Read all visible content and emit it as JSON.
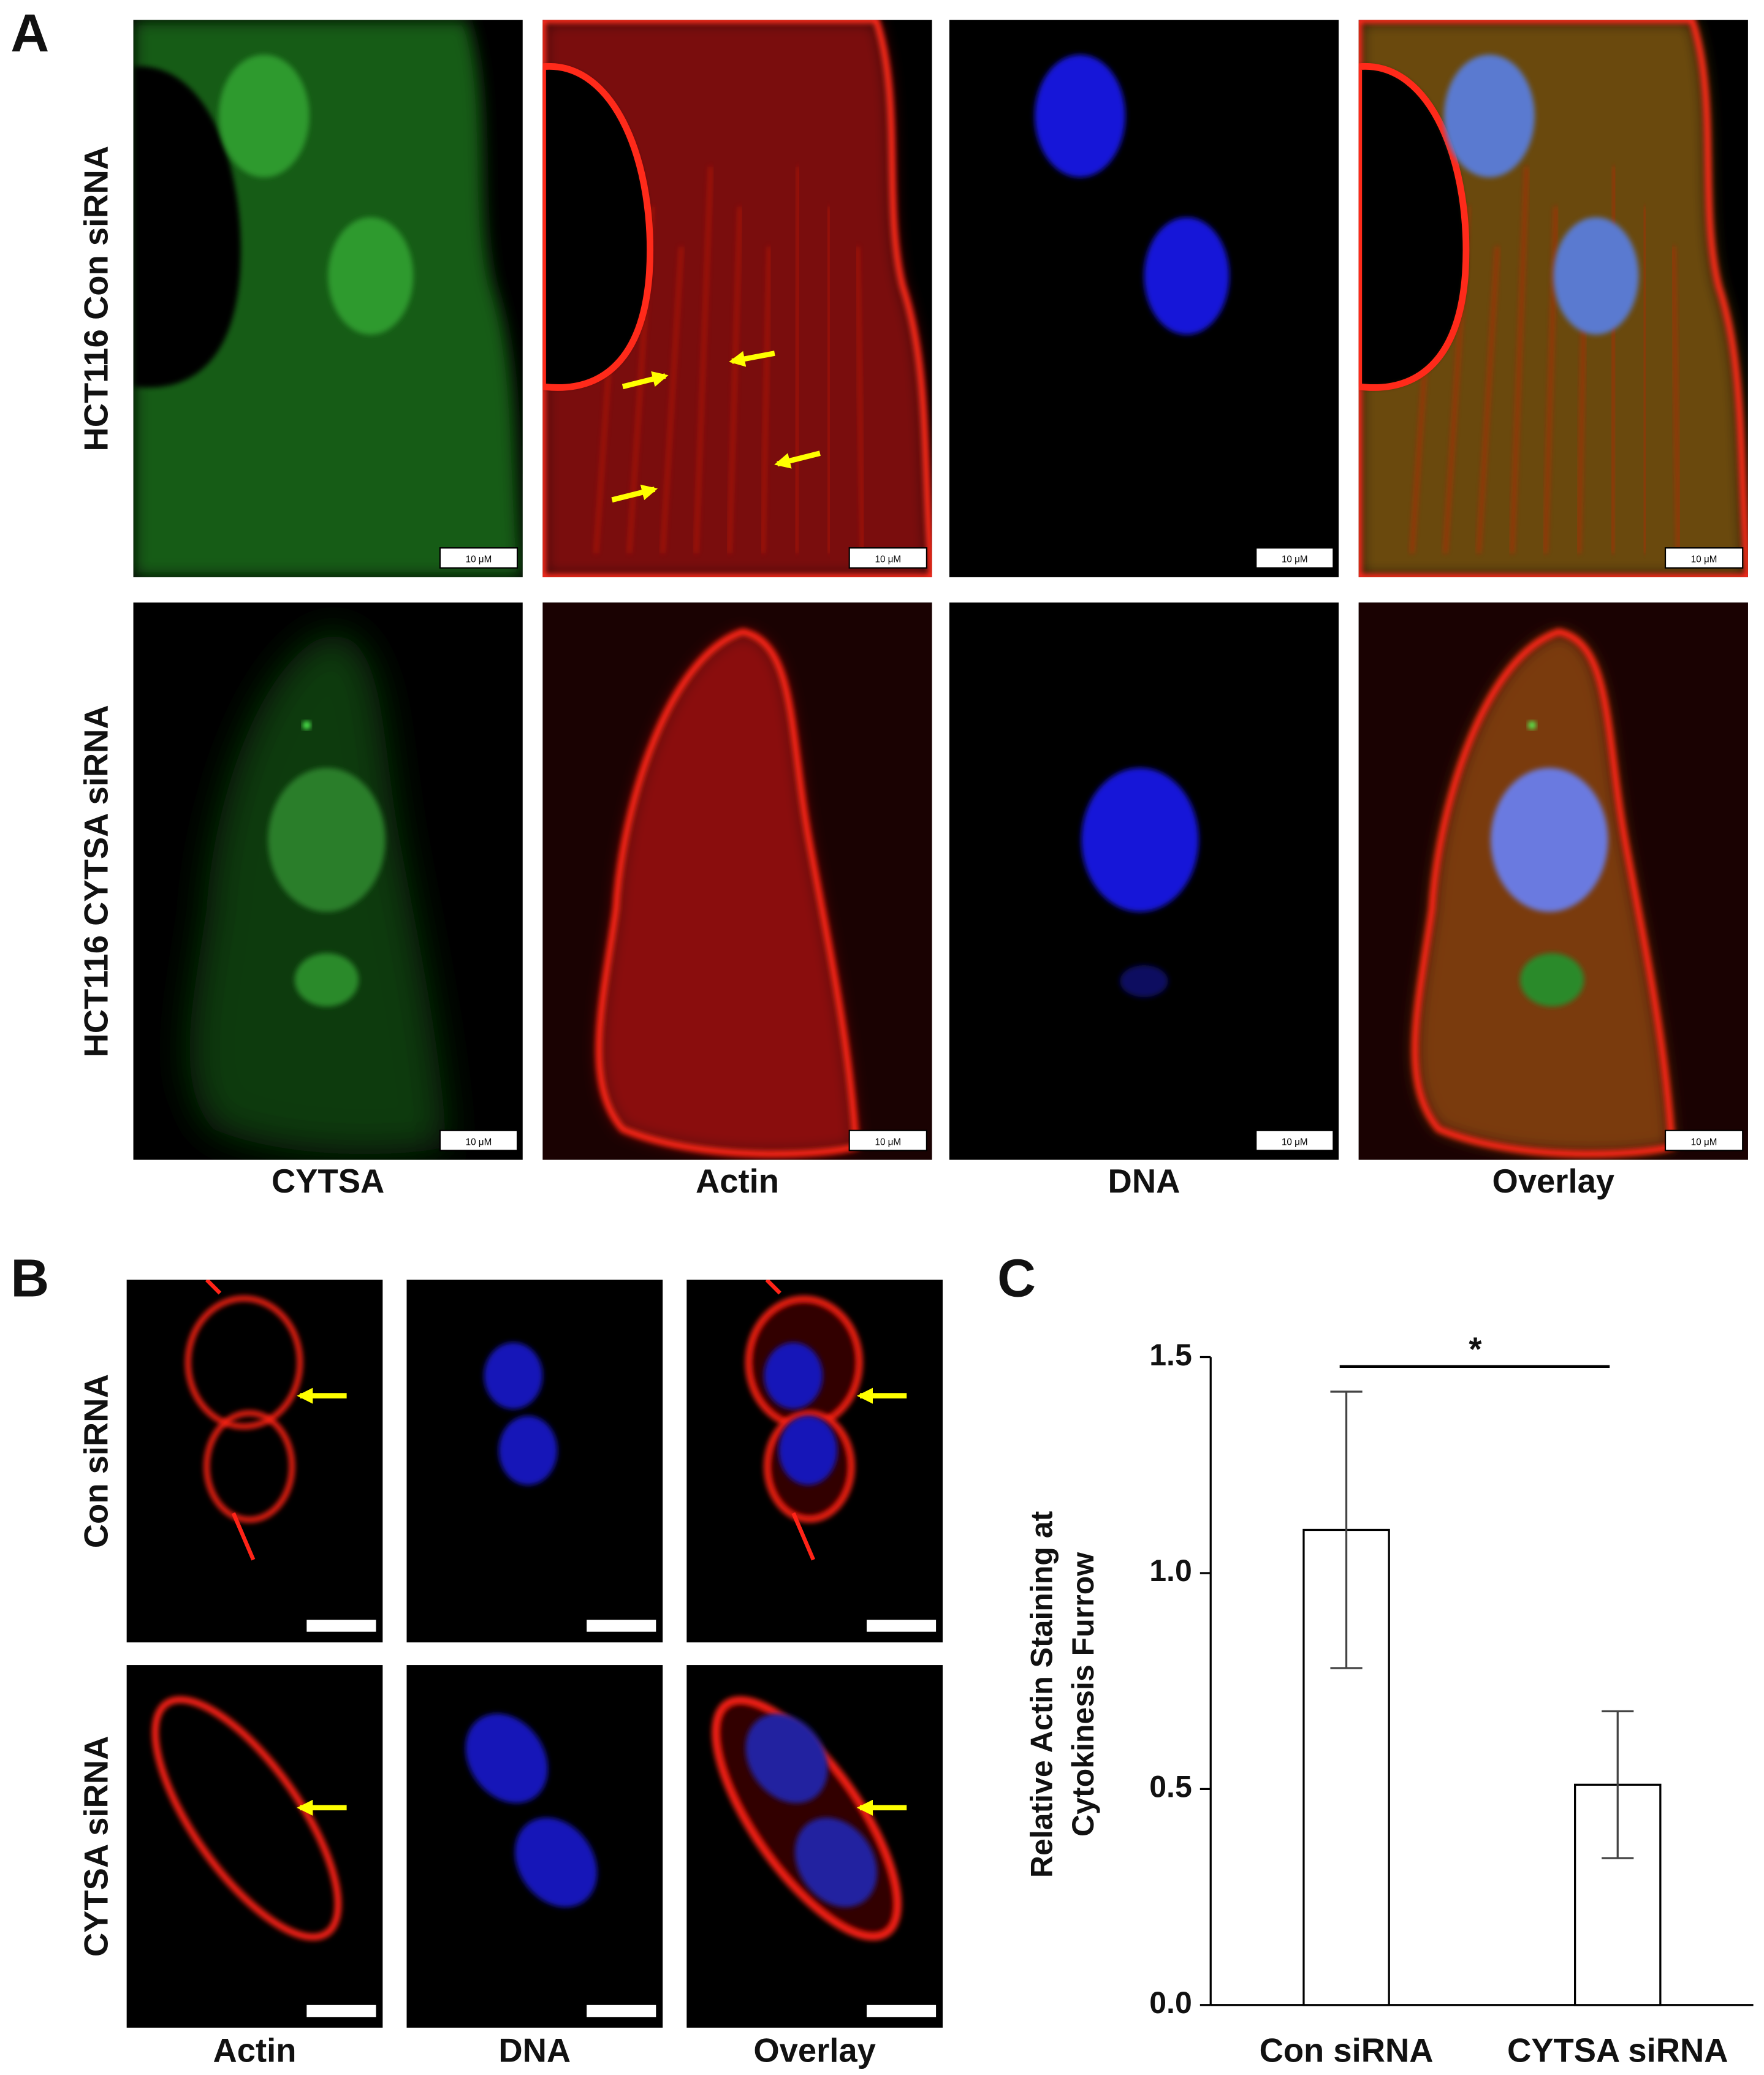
{
  "panel_a": {
    "label": "A",
    "row_labels": [
      "HCT116 Con siRNA",
      "HCT116 CYTSA siRNA"
    ],
    "column_labels": [
      "CYTSA",
      "Actin",
      "DNA",
      "Overlay"
    ],
    "scale_bar_label": "10 μM"
  },
  "panel_b": {
    "label": "B",
    "row_labels": [
      "Con siRNA",
      "CYTSA siRNA"
    ],
    "column_labels": [
      "Actin",
      "DNA",
      "Overlay"
    ]
  },
  "chart_data": {
    "panel_label": "C",
    "type": "bar",
    "ylabel": [
      "Relative Actin Staining at",
      "Cytokinesis Furrow"
    ],
    "categories": [
      "Con siRNA",
      "CYTSA siRNA"
    ],
    "values": [
      1.1,
      0.51
    ],
    "errors": [
      0.32,
      0.17
    ],
    "color": "#ffffff",
    "ylim": [
      0,
      1.5
    ],
    "yticks": [
      {
        "value": 0,
        "label": "0.0"
      },
      0.5,
      {
        "value": 1,
        "label": "1.0"
      },
      1.5
    ],
    "annotation": "*"
  }
}
